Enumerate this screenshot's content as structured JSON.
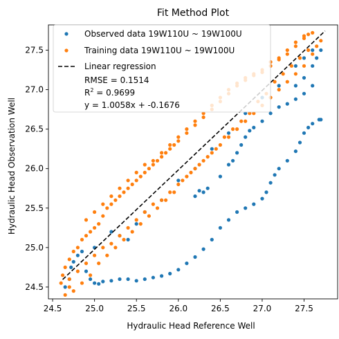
{
  "chart_data": {
    "type": "scatter",
    "title": "Fit Method Plot",
    "xlabel": "Hydraulic Head Reference Well",
    "ylabel": "Hydraulic Head Observation Well",
    "xlim": [
      24.45,
      27.9
    ],
    "ylim": [
      24.35,
      27.82
    ],
    "xticks": [
      "24.5",
      "25.0",
      "25.5",
      "26.0",
      "26.5",
      "27.0",
      "27.5"
    ],
    "yticks": [
      "24.5",
      "25.0",
      "25.5",
      "26.0",
      "26.5",
      "27.0",
      "27.5"
    ],
    "legend_position": "top-left",
    "series": [
      {
        "name": "Observed data 19W110U ~ 19W100U",
        "color": "#1f77b4",
        "points": [
          [
            24.65,
            24.5
          ],
          [
            24.7,
            24.6
          ],
          [
            24.72,
            24.75
          ],
          [
            24.75,
            24.82
          ],
          [
            24.8,
            24.9
          ],
          [
            24.85,
            24.95
          ],
          [
            24.9,
            24.7
          ],
          [
            24.95,
            24.6
          ],
          [
            25.0,
            24.55
          ],
          [
            25.05,
            24.54
          ],
          [
            25.1,
            24.57
          ],
          [
            25.2,
            24.58
          ],
          [
            25.3,
            24.6
          ],
          [
            25.4,
            24.6
          ],
          [
            25.5,
            24.58
          ],
          [
            25.6,
            24.6
          ],
          [
            25.7,
            24.62
          ],
          [
            25.8,
            24.64
          ],
          [
            25.9,
            24.67
          ],
          [
            26.0,
            24.72
          ],
          [
            26.1,
            24.8
          ],
          [
            26.2,
            24.88
          ],
          [
            26.3,
            24.98
          ],
          [
            26.4,
            25.1
          ],
          [
            26.5,
            25.25
          ],
          [
            26.6,
            25.35
          ],
          [
            26.7,
            25.45
          ],
          [
            26.8,
            25.5
          ],
          [
            26.9,
            25.55
          ],
          [
            27.0,
            25.62
          ],
          [
            27.05,
            25.7
          ],
          [
            27.1,
            25.82
          ],
          [
            27.15,
            25.92
          ],
          [
            27.2,
            26.0
          ],
          [
            27.3,
            26.1
          ],
          [
            27.4,
            26.22
          ],
          [
            27.45,
            26.33
          ],
          [
            27.5,
            26.45
          ],
          [
            27.55,
            26.52
          ],
          [
            27.6,
            26.57
          ],
          [
            27.68,
            26.62
          ],
          [
            27.7,
            26.62
          ],
          [
            26.5,
            25.9
          ],
          [
            26.6,
            26.05
          ],
          [
            26.65,
            26.1
          ],
          [
            26.7,
            26.2
          ],
          [
            26.75,
            26.3
          ],
          [
            26.8,
            26.4
          ],
          [
            26.85,
            26.48
          ],
          [
            26.9,
            26.52
          ],
          [
            27.0,
            26.6
          ],
          [
            27.1,
            26.7
          ],
          [
            27.2,
            26.78
          ],
          [
            27.3,
            26.82
          ],
          [
            27.4,
            26.88
          ],
          [
            27.5,
            26.95
          ],
          [
            27.6,
            27.05
          ],
          [
            26.35,
            25.75
          ],
          [
            26.3,
            25.7
          ],
          [
            26.2,
            25.65
          ],
          [
            26.25,
            25.72
          ],
          [
            25.0,
            25.0
          ],
          [
            25.2,
            25.2
          ],
          [
            25.3,
            25.15
          ],
          [
            25.4,
            25.1
          ],
          [
            25.5,
            25.3
          ],
          [
            25.6,
            25.45
          ],
          [
            25.8,
            25.6
          ],
          [
            26.0,
            25.85
          ],
          [
            26.2,
            26.0
          ],
          [
            26.4,
            26.25
          ],
          [
            26.6,
            26.45
          ],
          [
            26.8,
            26.7
          ],
          [
            27.0,
            26.9
          ],
          [
            27.2,
            27.05
          ],
          [
            27.4,
            27.3
          ],
          [
            27.5,
            27.4
          ],
          [
            27.6,
            27.5
          ],
          [
            27.4,
            27.05
          ],
          [
            27.5,
            27.15
          ],
          [
            27.6,
            27.3
          ],
          [
            27.65,
            27.4
          ],
          [
            27.7,
            27.5
          ]
        ]
      },
      {
        "name": "Training data 19W110U ~ 19W100U",
        "color": "#ff7f0e",
        "points": [
          [
            24.6,
            24.55
          ],
          [
            24.62,
            24.65
          ],
          [
            24.65,
            24.75
          ],
          [
            24.7,
            24.85
          ],
          [
            24.75,
            24.95
          ],
          [
            24.8,
            25.0
          ],
          [
            24.85,
            25.1
          ],
          [
            24.9,
            25.15
          ],
          [
            24.95,
            25.2
          ],
          [
            25.0,
            25.25
          ],
          [
            25.05,
            25.3
          ],
          [
            25.1,
            25.4
          ],
          [
            25.15,
            25.5
          ],
          [
            25.2,
            25.55
          ],
          [
            25.25,
            25.6
          ],
          [
            25.3,
            25.65
          ],
          [
            25.35,
            25.7
          ],
          [
            25.4,
            25.75
          ],
          [
            25.45,
            25.8
          ],
          [
            25.5,
            25.85
          ],
          [
            25.55,
            25.9
          ],
          [
            25.6,
            25.95
          ],
          [
            25.65,
            26.0
          ],
          [
            25.7,
            26.05
          ],
          [
            25.75,
            26.1
          ],
          [
            25.8,
            26.15
          ],
          [
            25.85,
            26.2
          ],
          [
            25.9,
            26.25
          ],
          [
            25.95,
            26.3
          ],
          [
            26.0,
            26.35
          ],
          [
            26.1,
            26.45
          ],
          [
            26.2,
            26.55
          ],
          [
            26.3,
            26.65
          ],
          [
            26.4,
            26.75
          ],
          [
            26.5,
            26.85
          ],
          [
            26.6,
            26.95
          ],
          [
            26.7,
            27.05
          ],
          [
            26.8,
            27.15
          ],
          [
            26.9,
            27.2
          ],
          [
            27.0,
            27.25
          ],
          [
            27.1,
            27.35
          ],
          [
            27.2,
            27.4
          ],
          [
            27.3,
            27.45
          ],
          [
            27.4,
            27.55
          ],
          [
            27.5,
            27.65
          ],
          [
            27.55,
            27.7
          ],
          [
            24.7,
            24.6
          ],
          [
            24.8,
            24.7
          ],
          [
            24.9,
            24.8
          ],
          [
            25.0,
            24.9
          ],
          [
            25.1,
            25.0
          ],
          [
            25.2,
            25.05
          ],
          [
            25.3,
            25.15
          ],
          [
            25.4,
            25.25
          ],
          [
            25.5,
            25.35
          ],
          [
            25.6,
            25.45
          ],
          [
            25.7,
            25.55
          ],
          [
            25.8,
            25.6
          ],
          [
            25.9,
            25.7
          ],
          [
            26.0,
            25.8
          ],
          [
            26.1,
            25.9
          ],
          [
            26.2,
            26.0
          ],
          [
            26.3,
            26.1
          ],
          [
            26.4,
            26.2
          ],
          [
            26.5,
            26.3
          ],
          [
            26.6,
            26.4
          ],
          [
            26.7,
            26.5
          ],
          [
            26.8,
            26.6
          ],
          [
            26.9,
            26.7
          ],
          [
            27.0,
            26.8
          ],
          [
            27.1,
            26.9
          ],
          [
            27.2,
            27.0
          ],
          [
            27.3,
            27.1
          ],
          [
            27.4,
            27.2
          ],
          [
            27.5,
            27.3
          ],
          [
            27.6,
            27.45
          ],
          [
            24.65,
            24.4
          ],
          [
            24.7,
            24.5
          ],
          [
            24.75,
            24.45
          ],
          [
            24.85,
            24.55
          ],
          [
            24.95,
            24.65
          ],
          [
            25.05,
            24.8
          ],
          [
            25.15,
            24.9
          ],
          [
            25.25,
            25.0
          ],
          [
            25.35,
            25.1
          ],
          [
            25.45,
            25.2
          ],
          [
            25.55,
            25.3
          ],
          [
            25.65,
            25.4
          ],
          [
            25.75,
            25.5
          ],
          [
            25.85,
            25.6
          ],
          [
            25.95,
            25.7
          ],
          [
            26.05,
            25.85
          ],
          [
            26.15,
            25.95
          ],
          [
            26.25,
            26.05
          ],
          [
            26.35,
            26.15
          ],
          [
            26.45,
            26.25
          ],
          [
            26.55,
            26.4
          ],
          [
            26.65,
            26.5
          ],
          [
            26.75,
            26.6
          ],
          [
            26.85,
            26.7
          ],
          [
            26.95,
            26.85
          ],
          [
            27.05,
            26.95
          ],
          [
            27.15,
            27.1
          ],
          [
            27.25,
            27.2
          ],
          [
            27.35,
            27.3
          ],
          [
            27.45,
            27.4
          ],
          [
            27.55,
            27.5
          ],
          [
            27.65,
            27.55
          ],
          [
            27.7,
            27.62
          ],
          [
            24.9,
            25.35
          ],
          [
            25.0,
            25.45
          ],
          [
            25.1,
            25.55
          ],
          [
            25.2,
            25.65
          ],
          [
            25.3,
            25.75
          ],
          [
            25.4,
            25.85
          ],
          [
            25.5,
            25.95
          ],
          [
            25.6,
            26.05
          ],
          [
            25.7,
            26.1
          ],
          [
            25.8,
            26.2
          ],
          [
            25.9,
            26.3
          ],
          [
            26.0,
            26.4
          ],
          [
            26.1,
            26.5
          ],
          [
            26.2,
            26.6
          ],
          [
            26.3,
            26.7
          ],
          [
            26.4,
            26.8
          ],
          [
            26.5,
            26.9
          ],
          [
            26.6,
            27.0
          ],
          [
            26.7,
            27.08
          ],
          [
            26.8,
            27.12
          ],
          [
            26.9,
            27.18
          ],
          [
            27.0,
            27.22
          ],
          [
            27.1,
            27.3
          ],
          [
            27.2,
            27.38
          ],
          [
            27.3,
            27.5
          ],
          [
            27.4,
            27.6
          ],
          [
            27.5,
            27.68
          ],
          [
            27.6,
            27.72
          ]
        ]
      }
    ],
    "regression": {
      "name": "Linear regression",
      "color": "#000000",
      "slope": 1.0058,
      "intercept": -0.1676,
      "x_range": [
        24.62,
        27.75
      ]
    },
    "annotations": {
      "rmse": "RMSE = 0.1514",
      "r2_prefix": "R",
      "r2_sup": "2",
      "r2_value": " = 0.9699",
      "equation": "y = 1.0058x + -0.1676"
    }
  }
}
